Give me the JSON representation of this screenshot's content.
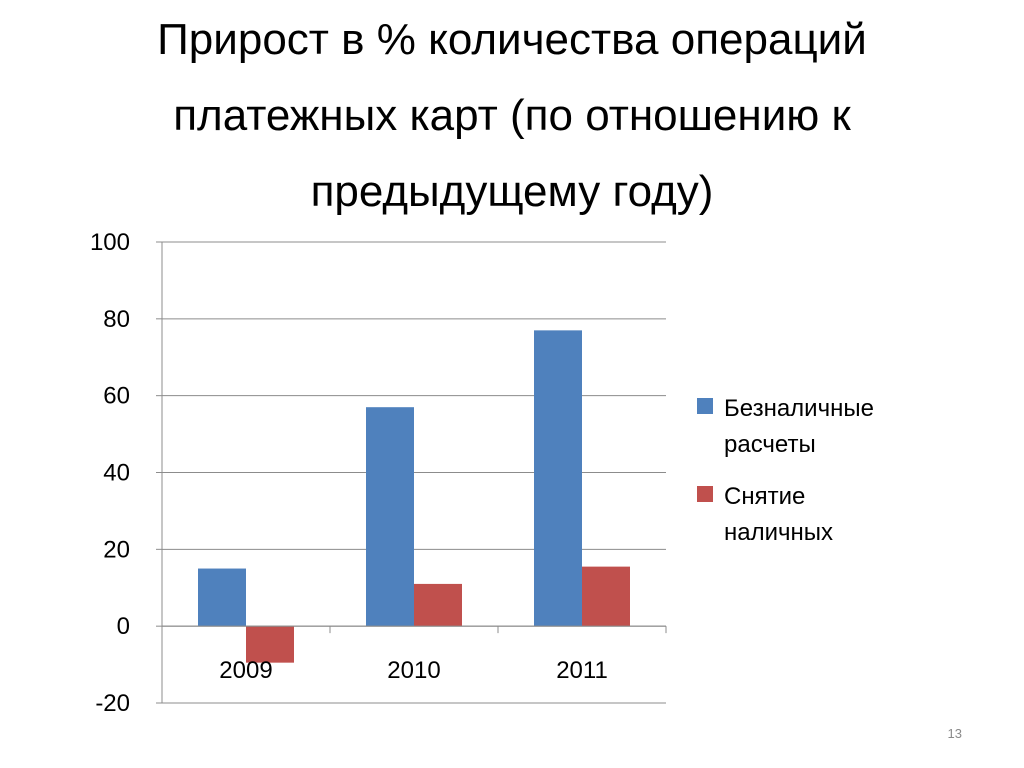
{
  "slide": {
    "title": "Прирост в %  количества операций платежных карт (по отношению к предыдущему году)",
    "page_number": "13"
  },
  "chart_data": {
    "type": "bar",
    "categories": [
      "2009",
      "2010",
      "2011"
    ],
    "series": [
      {
        "name": "Безналичные расчеты",
        "values": [
          15,
          57,
          77
        ],
        "color": "#4f81bd"
      },
      {
        "name": "Снятие наличных",
        "values": [
          -9.5,
          11,
          15.5
        ],
        "color": "#c0504d"
      }
    ],
    "ylim": [
      -20,
      100
    ],
    "yticks": [
      -20,
      0,
      20,
      40,
      60,
      80,
      100
    ],
    "grid": true,
    "legend": "right",
    "xlabel": "",
    "ylabel": ""
  }
}
